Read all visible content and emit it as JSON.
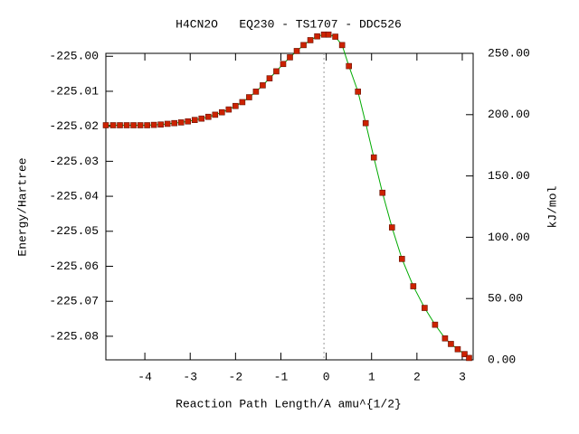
{
  "chart_data": {
    "type": "line",
    "title": "H4CN2O   EQ230 - TS1707 - DDC526",
    "x_label": "Reaction Path Length/A amu^{1/2}",
    "y_label": "Energy/Hartree",
    "y2_label": "kJ/mol",
    "x": [
      -4.86,
      -4.7,
      -4.55,
      -4.4,
      -4.25,
      -4.1,
      -3.95,
      -3.8,
      -3.65,
      -3.5,
      -3.35,
      -3.2,
      -3.05,
      -2.9,
      -2.75,
      -2.6,
      -2.45,
      -2.3,
      -2.15,
      -2.0,
      -1.85,
      -1.7,
      -1.55,
      -1.4,
      -1.25,
      -1.1,
      -0.95,
      -0.8,
      -0.65,
      -0.5,
      -0.35,
      -0.2,
      -0.05,
      0.05,
      0.2,
      0.35,
      0.5,
      0.7,
      0.87,
      1.05,
      1.24,
      1.45,
      1.67,
      1.92,
      2.17,
      2.4,
      2.62,
      2.75,
      2.9,
      3.05,
      3.15
    ],
    "series": [
      {
        "name": "Energy",
        "color": "#00aa00",
        "marker_color": "#cc2200",
        "values": [
          -225.0197,
          -225.0197,
          -225.0197,
          -225.0197,
          -225.0197,
          -225.0197,
          -225.0197,
          -225.0196,
          -225.0195,
          -225.0193,
          -225.0191,
          -225.0189,
          -225.0186,
          -225.0182,
          -225.0178,
          -225.0173,
          -225.0167,
          -225.016,
          -225.0152,
          -225.0142,
          -225.0131,
          -225.0117,
          -225.0101,
          -225.0083,
          -225.0063,
          -225.0043,
          -225.0022,
          -225.0003,
          -224.9985,
          -224.9968,
          -224.9954,
          -224.9943,
          -224.9938,
          -224.9938,
          -224.9944,
          -224.9968,
          -225.0028,
          -225.0101,
          -225.0191,
          -225.0289,
          -225.039,
          -225.0489,
          -225.0579,
          -225.0657,
          -225.0719,
          -225.0767,
          -225.0806,
          -225.0822,
          -225.0837,
          -225.0851,
          -225.0862
        ]
      }
    ],
    "xlim": [
      -4.86,
      3.24
    ],
    "ylim": [
      -225.08674,
      -224.99916
    ],
    "y2lim": [
      0,
      250
    ],
    "xticks": [
      -4,
      -3,
      -2,
      -1,
      0,
      1,
      2,
      3
    ],
    "yticks": [
      {
        "value": -225.0,
        "label": "-225.00"
      },
      {
        "value": -225.01,
        "label": "-225.01"
      },
      {
        "value": -225.02,
        "label": "-225.02"
      },
      {
        "value": -225.03,
        "label": "-225.03"
      },
      {
        "value": -225.04,
        "label": "-225.04"
      },
      {
        "value": -225.05,
        "label": "-225.05"
      },
      {
        "value": -225.06,
        "label": "-225.06"
      },
      {
        "value": -225.07,
        "label": "-225.07"
      },
      {
        "value": -225.08,
        "label": "-225.08"
      }
    ],
    "y2ticks": [
      {
        "value": 0,
        "label": "0.00"
      },
      {
        "value": 50,
        "label": "50.00"
      },
      {
        "value": 100,
        "label": "100.00"
      },
      {
        "value": 150,
        "label": "150.00"
      },
      {
        "value": 200,
        "label": "200.00"
      },
      {
        "value": 250,
        "label": "250.00"
      }
    ]
  }
}
